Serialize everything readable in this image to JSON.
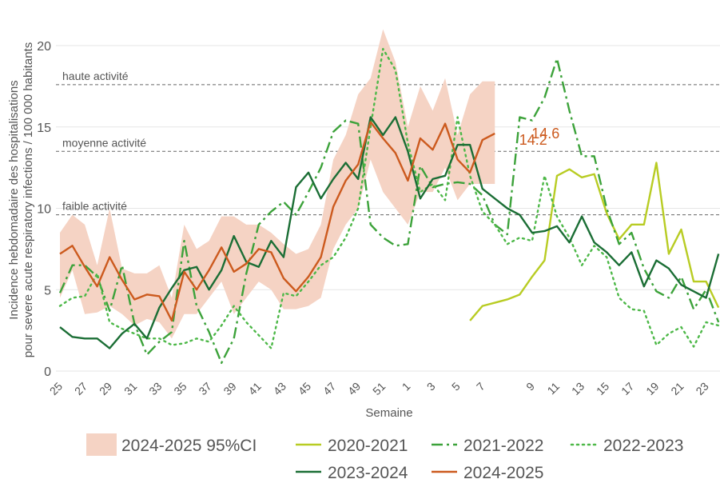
{
  "chart_data": {
    "type": "line",
    "ylabel": [
      "Incidence hebdomadaire des hospitalisations",
      "pour severe acute respiratory infections / 100 000 habitants"
    ],
    "xlabel": "Semaine",
    "categories": [
      "25",
      null,
      "27",
      null,
      "29",
      null,
      "31",
      null,
      "33",
      null,
      "35",
      null,
      "37",
      null,
      "39",
      null,
      "41",
      null,
      "43",
      null,
      "45",
      null,
      "47",
      null,
      "49",
      null,
      "51",
      null,
      "1",
      null,
      "3",
      null,
      "5",
      null,
      "7",
      null,
      null,
      null,
      "9",
      null,
      "11",
      null,
      "13",
      null,
      "15",
      null,
      "17",
      null,
      "19",
      null,
      "21",
      null,
      "23",
      null
    ],
    "ylim": [
      0,
      21
    ],
    "yticks": [
      0,
      5,
      10,
      15,
      20
    ],
    "grid": true,
    "band": {
      "name": "2024-2025 95%CI",
      "color": "#f5d3c4",
      "upper": [
        8.5,
        9.6,
        9.0,
        6.5,
        10.0,
        6.3,
        6.0,
        6.0,
        6.5,
        4.5,
        9.0,
        7.5,
        8.0,
        9.5,
        9.5,
        9.0,
        9.0,
        8.5,
        7.8,
        7.2,
        7.5,
        9.0,
        13.0,
        14.5,
        17.0,
        18.0,
        21.0,
        19.0,
        15.0,
        17.5,
        16.0,
        18.0,
        14.5,
        17.0,
        17.8,
        17.8,
        null,
        null,
        null,
        null,
        null,
        null,
        null,
        null,
        null,
        null,
        null,
        null,
        null,
        null,
        null,
        null,
        null,
        null
      ],
      "lower": [
        4.5,
        6.2,
        3.5,
        3.6,
        4.0,
        3.5,
        2.8,
        3.2,
        3.0,
        2.0,
        3.5,
        3.5,
        4.5,
        5.5,
        3.5,
        4.5,
        5.5,
        5.0,
        3.8,
        3.8,
        4.0,
        4.5,
        7.5,
        9.0,
        10.0,
        13.0,
        11.0,
        10.0,
        9.0,
        11.0,
        11.0,
        12.5,
        10.5,
        11.5,
        11.5,
        11.5,
        null,
        null,
        null,
        null,
        null,
        null,
        null,
        null,
        null,
        null,
        null,
        null,
        null,
        null,
        null,
        null,
        null,
        null
      ]
    },
    "series": [
      {
        "name": "2020-2021",
        "color": "#b8cc23",
        "dash": "solid",
        "values": [
          null,
          null,
          null,
          null,
          null,
          null,
          null,
          null,
          null,
          null,
          null,
          null,
          null,
          null,
          null,
          null,
          null,
          null,
          null,
          null,
          null,
          null,
          null,
          null,
          null,
          null,
          null,
          null,
          null,
          null,
          null,
          null,
          null,
          3.1,
          4.0,
          4.2,
          4.4,
          4.7,
          5.8,
          6.8,
          12.0,
          12.4,
          11.9,
          12.1,
          9.7,
          8.1,
          9.0,
          9.0,
          12.8,
          7.2,
          8.7,
          5.5,
          5.5,
          3.9
        ]
      },
      {
        "name": "2021-2022",
        "color": "#3ca23a",
        "dash": "dashdot",
        "values": [
          4.8,
          6.5,
          6.5,
          5.8,
          3.7,
          6.5,
          2.9,
          1.0,
          1.8,
          2.4,
          8.0,
          4.0,
          2.4,
          0.5,
          2.0,
          6.0,
          9.0,
          9.8,
          10.4,
          9.6,
          11.0,
          12.5,
          14.7,
          15.4,
          15.2,
          9.0,
          8.2,
          7.7,
          7.8,
          12.6,
          11.3,
          11.5,
          11.6,
          11.5,
          10.8,
          9.0,
          8.4,
          15.6,
          15.4,
          16.8,
          19.2,
          16.0,
          13.2,
          13.2,
          10.0,
          7.8,
          8.5,
          6.3,
          4.9,
          4.5,
          5.8,
          3.8,
          5.0,
          3.0
        ]
      },
      {
        "name": "2022-2023",
        "color": "#4db848",
        "dash": "dotted",
        "values": [
          4.0,
          4.5,
          4.6,
          6.0,
          3.0,
          2.6,
          2.3,
          2.0,
          2.0,
          1.6,
          1.7,
          2.0,
          1.8,
          2.8,
          4.0,
          3.0,
          2.2,
          1.4,
          4.8,
          4.6,
          5.5,
          6.5,
          7.0,
          8.2,
          10.0,
          15.0,
          19.8,
          18.5,
          14.0,
          11.0,
          11.5,
          10.5,
          15.6,
          12.0,
          9.8,
          9.0,
          7.8,
          8.2,
          8.0,
          12.0,
          9.5,
          8.2,
          6.5,
          7.7,
          7.0,
          4.5,
          3.8,
          3.7,
          1.6,
          2.3,
          2.7,
          1.5,
          3.0,
          2.8
        ]
      },
      {
        "name": "2023-2024",
        "color": "#1b6e35",
        "dash": "solid",
        "values": [
          2.7,
          2.1,
          2.0,
          2.0,
          1.4,
          2.3,
          2.9,
          2.0,
          3.9,
          5.1,
          6.2,
          6.4,
          5.0,
          6.2,
          8.3,
          6.7,
          6.4,
          8.0,
          7.0,
          11.3,
          12.2,
          10.6,
          11.8,
          12.8,
          11.8,
          15.6,
          14.5,
          15.6,
          13.5,
          10.6,
          11.8,
          12.0,
          13.9,
          13.9,
          11.2,
          10.6,
          10.0,
          9.6,
          8.5,
          8.6,
          8.9,
          7.9,
          9.5,
          7.9,
          7.3,
          6.5,
          7.3,
          5.2,
          6.8,
          6.3,
          5.3,
          4.9,
          4.5,
          7.2
        ]
      },
      {
        "name": "2024-2025",
        "color": "#cc5a1e",
        "dash": "solid",
        "values": [
          7.2,
          7.7,
          6.4,
          5.2,
          7.0,
          5.6,
          4.4,
          4.7,
          4.6,
          3.1,
          6.1,
          5.0,
          6.2,
          7.6,
          6.1,
          6.6,
          7.5,
          7.3,
          5.7,
          4.9,
          5.8,
          7.0,
          10.1,
          11.7,
          12.7,
          15.3,
          14.3,
          13.4,
          11.7,
          14.3,
          13.6,
          15.2,
          13.0,
          12.2,
          14.2,
          14.6,
          null,
          null,
          null,
          null,
          null,
          null,
          null,
          null,
          null,
          null,
          null,
          null,
          null,
          null,
          null,
          null,
          null,
          null
        ],
        "value_labels": [
          null,
          null,
          null,
          null,
          null,
          null,
          null,
          null,
          null,
          null,
          null,
          null,
          null,
          null,
          null,
          null,
          null,
          null,
          null,
          null,
          null,
          null,
          null,
          null,
          null,
          null,
          null,
          null,
          null,
          null,
          null,
          null,
          null,
          null,
          "14.2",
          "14.6",
          null,
          null,
          null,
          null,
          null,
          null,
          null,
          null,
          null,
          null,
          null,
          null,
          null,
          null,
          null,
          null,
          null,
          null
        ]
      }
    ],
    "reference_lines": [
      {
        "value": 17.6,
        "label": "haute activité"
      },
      {
        "value": 13.5,
        "label": "moyenne activité"
      },
      {
        "value": 9.6,
        "label": "faible activité"
      }
    ]
  }
}
